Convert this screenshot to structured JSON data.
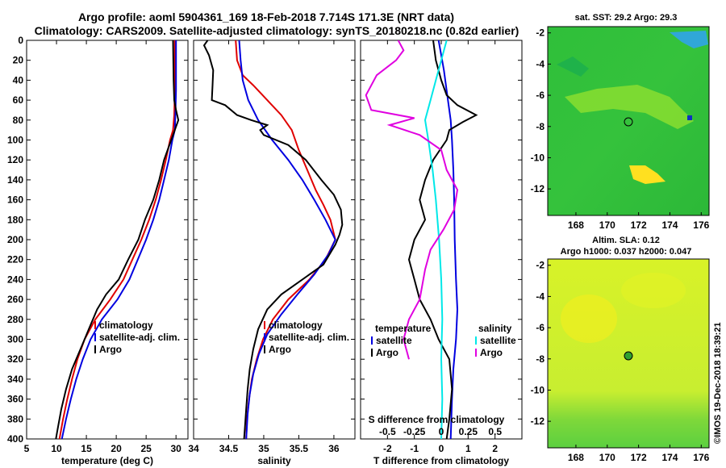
{
  "header": {
    "line1": "Argo profile: aoml 5904361_169 18-Feb-2018 7.714S 171.3E (NRT data)",
    "line2": "Climatology: CARS2009. Satellite-adjusted climatology: synTS_20180218.nc (0.82d earlier)"
  },
  "colors": {
    "climatology": "#e00000",
    "satellite": "#0000e0",
    "argo": "#000000",
    "sat_salinity": "#00e8e8",
    "argo_salinity": "#e000e0"
  },
  "chart_data": [
    {
      "id": "temperature",
      "type": "line",
      "xlabel": "temperature (deg C)",
      "xlim": [
        5,
        32
      ],
      "xticks": [
        5,
        10,
        15,
        20,
        25,
        30
      ],
      "ylim": [
        0,
        400
      ],
      "yticks": [
        0,
        20,
        40,
        60,
        80,
        100,
        120,
        140,
        160,
        180,
        200,
        220,
        240,
        260,
        280,
        300,
        320,
        340,
        360,
        380,
        400
      ],
      "legend": [
        "climatology",
        "satellite-adj. clim.",
        "Argo"
      ],
      "series": [
        {
          "name": "climatology",
          "color": "#e00000",
          "points": [
            [
              29.8,
              0
            ],
            [
              29.8,
              50
            ],
            [
              29.7,
              75
            ],
            [
              29.5,
              90
            ],
            [
              29.0,
              100
            ],
            [
              28.3,
              120
            ],
            [
              27.5,
              140
            ],
            [
              26.6,
              160
            ],
            [
              25.5,
              180
            ],
            [
              24.2,
              200
            ],
            [
              22.7,
              220
            ],
            [
              21.2,
              240
            ],
            [
              19.0,
              260
            ],
            [
              16.5,
              280
            ],
            [
              14.7,
              300
            ],
            [
              13.5,
              320
            ],
            [
              12.6,
              340
            ],
            [
              11.8,
              360
            ],
            [
              11.1,
              380
            ],
            [
              10.5,
              400
            ]
          ]
        },
        {
          "name": "satellite-adj. clim.",
          "color": "#0000e0",
          "points": [
            [
              30.0,
              0
            ],
            [
              30.0,
              50
            ],
            [
              29.9,
              75
            ],
            [
              29.8,
              90
            ],
            [
              29.4,
              100
            ],
            [
              28.8,
              120
            ],
            [
              28.0,
              140
            ],
            [
              27.2,
              160
            ],
            [
              26.2,
              180
            ],
            [
              25.0,
              200
            ],
            [
              23.6,
              220
            ],
            [
              22.2,
              240
            ],
            [
              20.2,
              260
            ],
            [
              17.6,
              280
            ],
            [
              15.7,
              300
            ],
            [
              14.4,
              320
            ],
            [
              13.3,
              340
            ],
            [
              12.4,
              360
            ],
            [
              11.6,
              380
            ],
            [
              10.9,
              400
            ]
          ]
        },
        {
          "name": "Argo",
          "color": "#000000",
          "points": [
            [
              29.5,
              0
            ],
            [
              29.6,
              40
            ],
            [
              29.7,
              60
            ],
            [
              30.0,
              70
            ],
            [
              30.4,
              80
            ],
            [
              30.1,
              85
            ],
            [
              29.8,
              90
            ],
            [
              29.2,
              100
            ],
            [
              28.6,
              110
            ],
            [
              28.0,
              120
            ],
            [
              27.2,
              140
            ],
            [
              26.2,
              160
            ],
            [
              24.8,
              180
            ],
            [
              23.7,
              200
            ],
            [
              22.0,
              220
            ],
            [
              20.4,
              240
            ],
            [
              18.3,
              255
            ],
            [
              16.8,
              270
            ],
            [
              15.4,
              290
            ],
            [
              14.0,
              310
            ],
            [
              12.6,
              330
            ],
            [
              11.6,
              350
            ],
            [
              10.8,
              370
            ],
            [
              10.2,
              390
            ],
            [
              9.9,
              400
            ]
          ]
        }
      ]
    },
    {
      "id": "salinity",
      "type": "line",
      "xlabel": "salinity",
      "xlim": [
        34,
        36.3
      ],
      "xticks": [
        34,
        34.5,
        35,
        35.5,
        36
      ],
      "ylim": [
        0,
        400
      ],
      "legend": [
        "climatology",
        "satellite-adj. clim.",
        "Argo"
      ],
      "series": [
        {
          "name": "climatology",
          "color": "#e00000",
          "points": [
            [
              34.6,
              0
            ],
            [
              34.62,
              20
            ],
            [
              34.7,
              35
            ],
            [
              34.85,
              45
            ],
            [
              35.05,
              60
            ],
            [
              35.25,
              75
            ],
            [
              35.4,
              90
            ],
            [
              35.5,
              110
            ],
            [
              35.62,
              130
            ],
            [
              35.74,
              150
            ],
            [
              35.85,
              165
            ],
            [
              35.95,
              180
            ],
            [
              36.02,
              200
            ],
            [
              35.88,
              220
            ],
            [
              35.65,
              240
            ],
            [
              35.35,
              260
            ],
            [
              35.13,
              280
            ],
            [
              34.99,
              300
            ],
            [
              34.9,
              320
            ],
            [
              34.83,
              340
            ],
            [
              34.79,
              360
            ],
            [
              34.76,
              380
            ],
            [
              34.75,
              400
            ]
          ]
        },
        {
          "name": "satellite-adj. clim.",
          "color": "#0000e0",
          "points": [
            [
              34.65,
              0
            ],
            [
              34.67,
              20
            ],
            [
              34.7,
              40
            ],
            [
              34.78,
              60
            ],
            [
              34.92,
              80
            ],
            [
              35.12,
              100
            ],
            [
              35.35,
              120
            ],
            [
              35.55,
              140
            ],
            [
              35.72,
              160
            ],
            [
              35.88,
              180
            ],
            [
              36.02,
              200
            ],
            [
              35.92,
              215
            ],
            [
              35.72,
              235
            ],
            [
              35.48,
              255
            ],
            [
              35.25,
              275
            ],
            [
              35.05,
              295
            ],
            [
              34.93,
              315
            ],
            [
              34.85,
              335
            ],
            [
              34.8,
              355
            ],
            [
              34.77,
              375
            ],
            [
              34.75,
              400
            ]
          ]
        },
        {
          "name": "Argo",
          "color": "#000000",
          "points": [
            [
              34.2,
              0
            ],
            [
              34.15,
              5
            ],
            [
              34.22,
              15
            ],
            [
              34.28,
              30
            ],
            [
              34.27,
              45
            ],
            [
              34.26,
              60
            ],
            [
              34.45,
              65
            ],
            [
              34.62,
              75
            ],
            [
              34.82,
              80
            ],
            [
              35.05,
              85
            ],
            [
              34.95,
              90
            ],
            [
              35.0,
              95
            ],
            [
              35.35,
              105
            ],
            [
              35.6,
              120
            ],
            [
              35.82,
              140
            ],
            [
              36.0,
              155
            ],
            [
              36.1,
              170
            ],
            [
              36.12,
              185
            ],
            [
              36.08,
              195
            ],
            [
              36.02,
              205
            ],
            [
              35.85,
              225
            ],
            [
              35.55,
              240
            ],
            [
              35.25,
              255
            ],
            [
              35.05,
              270
            ],
            [
              34.92,
              290
            ],
            [
              34.85,
              310
            ],
            [
              34.8,
              330
            ],
            [
              34.77,
              350
            ],
            [
              34.75,
              370
            ],
            [
              34.73,
              390
            ],
            [
              34.72,
              400
            ]
          ]
        }
      ]
    },
    {
      "id": "differences",
      "type": "line",
      "xlabel": "T difference from climatology",
      "xlabel_top": "S difference from climatology",
      "xlim": [
        -3,
        3
      ],
      "xticks": [
        -2,
        -1,
        0,
        1,
        2
      ],
      "xlim_top": [
        -0.75,
        0.75
      ],
      "xticks_top": [
        "-0.5",
        "-0.25",
        "0",
        "0.25",
        "0.5"
      ],
      "ylim": [
        0,
        400
      ],
      "legend_left": {
        "title": "temperature",
        "items": [
          "satellite",
          "Argo"
        ]
      },
      "legend_right": {
        "title": "salinity",
        "items": [
          "satellite",
          "Argo"
        ]
      },
      "series": [
        {
          "name": "temperature satellite",
          "color": "#0000e0",
          "axis": "T",
          "points": [
            [
              -0.1,
              0
            ],
            [
              0.1,
              30
            ],
            [
              0.25,
              60
            ],
            [
              0.35,
              80
            ],
            [
              0.4,
              100
            ],
            [
              0.45,
              130
            ],
            [
              0.48,
              160
            ],
            [
              0.5,
              200
            ],
            [
              0.55,
              240
            ],
            [
              0.6,
              270
            ],
            [
              0.55,
              300
            ],
            [
              0.45,
              330
            ],
            [
              0.4,
              360
            ],
            [
              0.35,
              400
            ]
          ]
        },
        {
          "name": "temperature Argo",
          "color": "#000000",
          "axis": "T",
          "points": [
            [
              -0.3,
              0
            ],
            [
              -0.2,
              20
            ],
            [
              0.0,
              40
            ],
            [
              0.2,
              55
            ],
            [
              0.6,
              65
            ],
            [
              1.3,
              75
            ],
            [
              0.8,
              82
            ],
            [
              0.3,
              90
            ],
            [
              0.2,
              100
            ],
            [
              -0.3,
              120
            ],
            [
              -0.6,
              140
            ],
            [
              -0.8,
              160
            ],
            [
              -0.6,
              180
            ],
            [
              -1.0,
              200
            ],
            [
              -1.2,
              220
            ],
            [
              -1.0,
              240
            ],
            [
              -0.8,
              260
            ],
            [
              -0.4,
              280
            ],
            [
              -0.1,
              300
            ],
            [
              0.3,
              320
            ],
            [
              0.4,
              350
            ],
            [
              0.3,
              380
            ],
            [
              0.2,
              400
            ]
          ]
        },
        {
          "name": "salinity satellite",
          "color": "#00e8e8",
          "axis": "S",
          "points": [
            [
              0.05,
              0
            ],
            [
              0.0,
              20
            ],
            [
              -0.05,
              40
            ],
            [
              -0.1,
              60
            ],
            [
              -0.15,
              80
            ],
            [
              -0.12,
              100
            ],
            [
              -0.08,
              130
            ],
            [
              -0.05,
              160
            ],
            [
              -0.02,
              200
            ],
            [
              0.0,
              240
            ],
            [
              0.01,
              280
            ],
            [
              0.0,
              320
            ],
            [
              0.01,
              360
            ],
            [
              0.0,
              400
            ]
          ]
        },
        {
          "name": "salinity Argo",
          "color": "#e000e0",
          "axis": "S",
          "points": [
            [
              -0.4,
              0
            ],
            [
              -0.35,
              10
            ],
            [
              -0.42,
              20
            ],
            [
              -0.6,
              35
            ],
            [
              -0.7,
              55
            ],
            [
              -0.65,
              70
            ],
            [
              -0.25,
              78
            ],
            [
              -0.48,
              85
            ],
            [
              -0.2,
              95
            ],
            [
              0.0,
              110
            ],
            [
              0.05,
              130
            ],
            [
              0.15,
              150
            ],
            [
              0.12,
              170
            ],
            [
              0.02,
              190
            ],
            [
              -0.1,
              210
            ],
            [
              -0.15,
              230
            ],
            [
              -0.2,
              260
            ],
            [
              -0.3,
              280
            ],
            [
              -0.35,
              300
            ],
            [
              -0.3,
              320
            ]
          ]
        }
      ]
    }
  ],
  "maps": {
    "sst": {
      "title": "sat. SST: 29.2 Argo: 29.3",
      "xticks": [
        "168",
        "170",
        "172",
        "174",
        "176"
      ],
      "yticks": [
        "-2",
        "-4",
        "-6",
        "-8",
        "-10",
        "-12"
      ],
      "marker": {
        "lon": 171.3,
        "lat": -7.714
      }
    },
    "sla": {
      "title_line1": "Altim. SLA: 0.12",
      "title_line2": "Argo h1000: 0.037 h2000: 0.047",
      "xticks": [
        "168",
        "170",
        "172",
        "174",
        "176"
      ],
      "yticks": [
        "-2",
        "-4",
        "-6",
        "-8",
        "-10",
        "-12"
      ],
      "marker": {
        "lon": 171.3,
        "lat": -7.714
      }
    }
  },
  "credit": "©IMOS 19-Dec-2018 18:39:21"
}
